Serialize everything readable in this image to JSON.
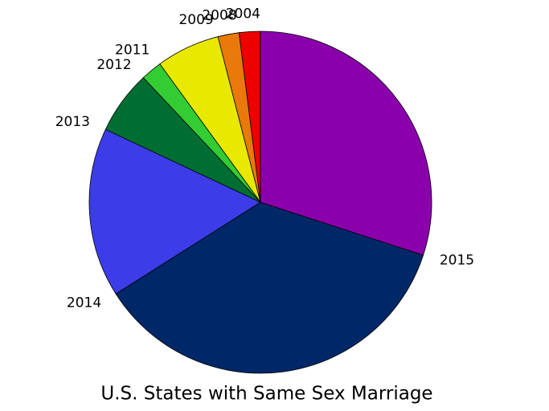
{
  "chart_data": {
    "type": "pie",
    "title": "U.S. States with Same Sex Marriage",
    "categories": [
      "2004",
      "2008",
      "2009",
      "2011",
      "2012",
      "2013",
      "2014",
      "2015"
    ],
    "values": [
      1,
      1,
      3,
      1,
      3,
      8,
      18,
      15
    ],
    "colors": [
      "#ee0000",
      "#e8790a",
      "#e8e800",
      "#33cc33",
      "#006e33",
      "#3c3ce8",
      "#002868",
      "#8a00aa"
    ]
  }
}
